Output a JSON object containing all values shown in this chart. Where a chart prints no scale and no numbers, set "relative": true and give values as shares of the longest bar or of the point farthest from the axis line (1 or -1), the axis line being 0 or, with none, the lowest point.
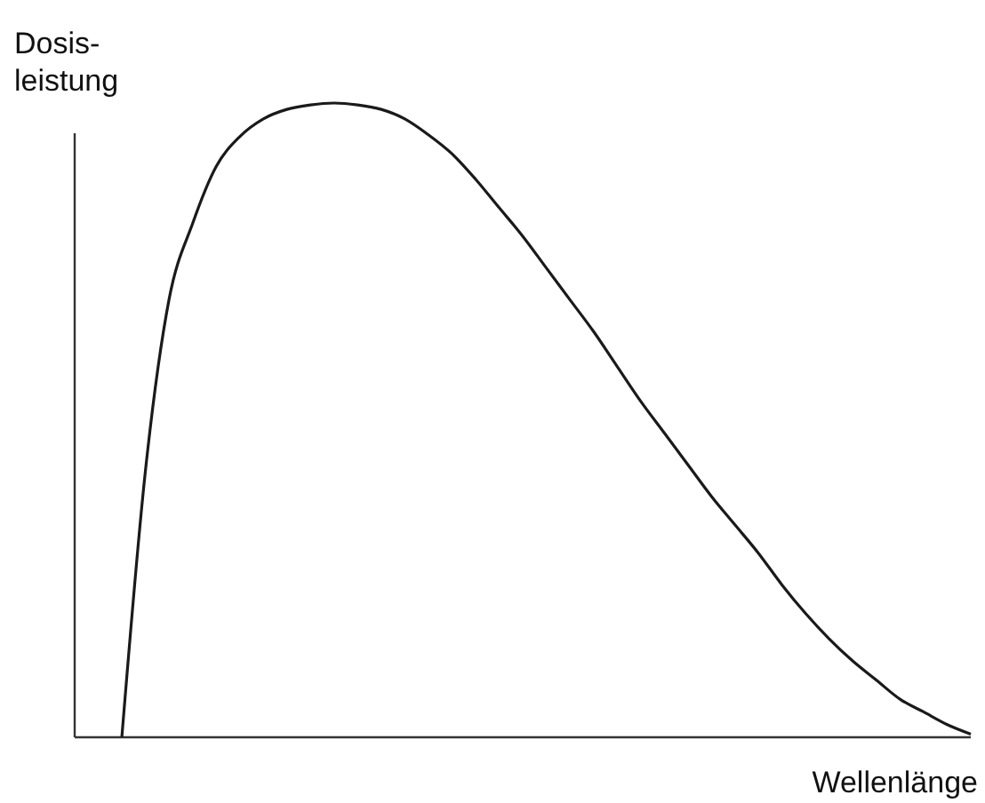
{
  "chart_data": {
    "type": "line",
    "relative": true,
    "ylabel": "Dosis-\nleistung",
    "xlabel": "Wellenlänge",
    "color": "#1a1a1a",
    "marker": "none",
    "line_style": "solid",
    "categories": [
      null,
      null,
      null,
      null,
      null,
      null,
      null,
      null,
      null,
      null,
      null,
      null,
      null,
      null,
      null,
      null,
      null,
      null,
      null,
      null,
      null,
      null,
      null,
      null,
      null,
      null,
      null,
      null,
      null,
      null,
      null,
      null,
      null,
      null,
      null,
      null,
      null,
      null,
      null
    ],
    "values": [
      null,
      null,
      0,
      0.42,
      0.69,
      0.81,
      0.9,
      0.947,
      0.975,
      0.99,
      0.997,
      1,
      0.997,
      0.99,
      0.975,
      0.95,
      0.92,
      0.88,
      0.835,
      0.79,
      0.74,
      0.69,
      0.64,
      0.585,
      0.53,
      0.48,
      0.43,
      0.38,
      0.335,
      0.29,
      0.24,
      0.195,
      0.155,
      0.12,
      0.09,
      0.06,
      0.04,
      0.02,
      0.005
    ]
  }
}
